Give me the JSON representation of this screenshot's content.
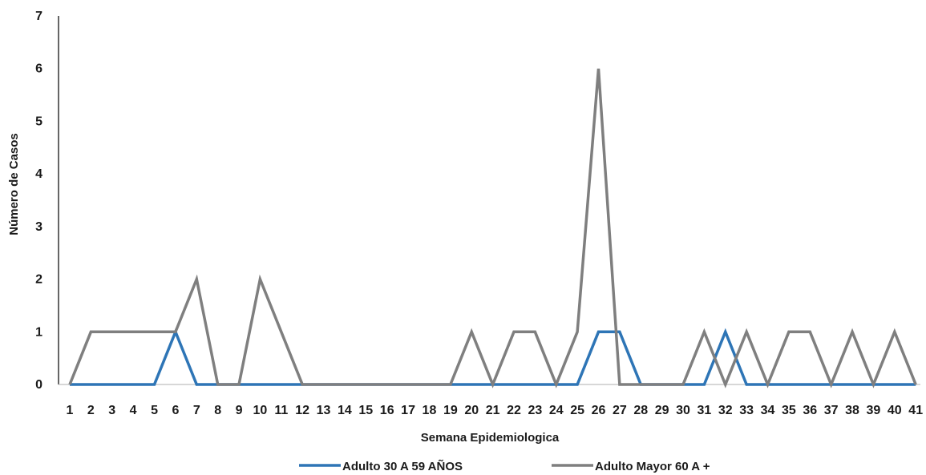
{
  "chart_data": {
    "type": "line",
    "title": "",
    "xlabel": "Semana Epidemiologica",
    "ylabel": "Número de Casos",
    "ylim": [
      0,
      7
    ],
    "yticks": [
      0,
      1,
      2,
      3,
      4,
      5,
      6,
      7
    ],
    "grid": false,
    "legend_position": "bottom",
    "categories": [
      "1",
      "2",
      "3",
      "4",
      "5",
      "6",
      "7",
      "8",
      "9",
      "10",
      "11",
      "12",
      "13",
      "14",
      "15",
      "16",
      "17",
      "18",
      "19",
      "20",
      "21",
      "22",
      "23",
      "24",
      "25",
      "26",
      "27",
      "28",
      "29",
      "30",
      "31",
      "32",
      "33",
      "34",
      "35",
      "36",
      "37",
      "38",
      "39",
      "40",
      "41"
    ],
    "series": [
      {
        "name": "Adulto 30 A 59 AÑOS",
        "color": "#2e75b6",
        "values": [
          0,
          0,
          0,
          0,
          0,
          1,
          0,
          0,
          0,
          0,
          0,
          0,
          0,
          0,
          0,
          0,
          0,
          0,
          0,
          0,
          0,
          0,
          0,
          0,
          0,
          1,
          1,
          0,
          0,
          0,
          0,
          1,
          0,
          0,
          0,
          0,
          0,
          0,
          0,
          0,
          0
        ]
      },
      {
        "name": "Adulto Mayor 60 A +",
        "color": "#7f7f7f",
        "values": [
          0,
          1,
          1,
          1,
          1,
          1,
          2,
          0,
          0,
          2,
          1,
          0,
          0,
          0,
          0,
          0,
          0,
          0,
          0,
          1,
          0,
          1,
          1,
          0,
          1,
          6,
          0,
          0,
          0,
          0,
          1,
          0,
          1,
          0,
          1,
          1,
          0,
          1,
          0,
          1,
          0
        ]
      }
    ]
  }
}
